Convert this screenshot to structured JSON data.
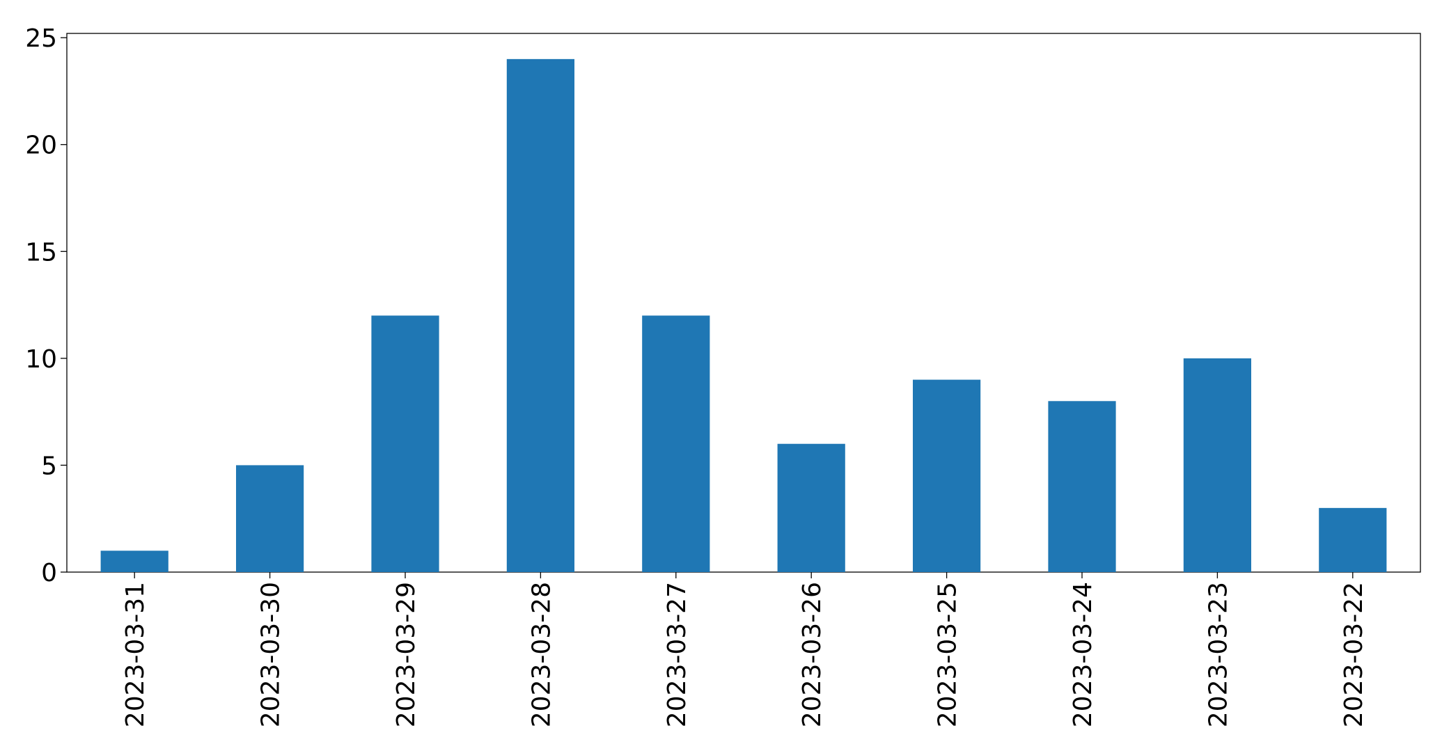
{
  "chart_data": {
    "type": "bar",
    "categories": [
      "2023-03-31",
      "2023-03-30",
      "2023-03-29",
      "2023-03-28",
      "2023-03-27",
      "2023-03-26",
      "2023-03-25",
      "2023-03-24",
      "2023-03-23",
      "2023-03-22"
    ],
    "values": [
      1,
      5,
      12,
      24,
      12,
      6,
      9,
      8,
      10,
      3
    ],
    "color": "#1f77b4",
    "ylim": [
      0,
      25.2
    ],
    "yticks": [
      0,
      5,
      10,
      15,
      20,
      25
    ],
    "grid": false
  }
}
